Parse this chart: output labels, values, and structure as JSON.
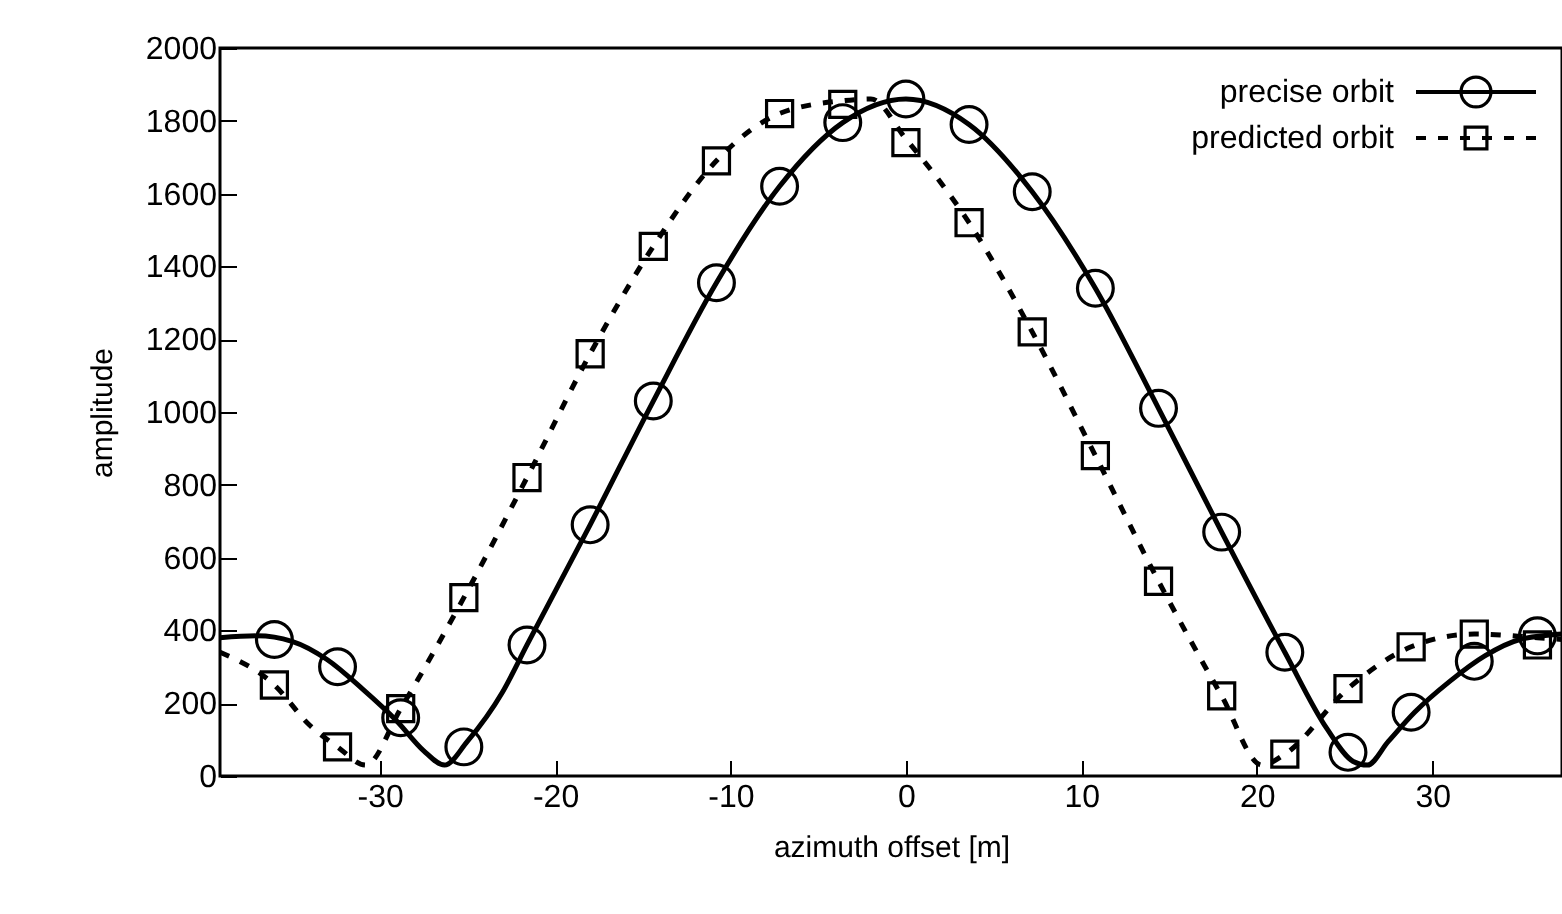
{
  "chart_data": {
    "type": "line",
    "xlabel": "azimuth offset [m]",
    "ylabel": "amplitude",
    "xlim": [
      -39.1,
      37.4
    ],
    "ylim": [
      0,
      2000
    ],
    "xticks": [
      -30,
      -20,
      -10,
      0,
      10,
      20,
      30
    ],
    "yticks": [
      0,
      200,
      400,
      600,
      800,
      1000,
      1200,
      1400,
      1600,
      1800,
      2000
    ],
    "grid": false,
    "legend": "top right",
    "series": [
      {
        "name": "precise orbit",
        "color": "#000000",
        "line_style": "solid",
        "x": [
          -39.1,
          -37,
          -35,
          -33,
          -31,
          -29,
          -27.5,
          -26.3,
          -25,
          -23,
          -21.6,
          -18,
          -14.4,
          -10.8,
          -7.2,
          -3.6,
          0,
          3.6,
          7.2,
          10.8,
          14.4,
          18,
          21.6,
          24,
          25.5,
          26.3,
          27.5,
          29,
          31,
          33,
          35,
          37.4
        ],
        "values": [
          380,
          385,
          370,
          320,
          240,
          150,
          70,
          30,
          95,
          230,
          360,
          690,
          1030,
          1355,
          1620,
          1795,
          1860,
          1790,
          1605,
          1340,
          1010,
          670,
          340,
          130,
          40,
          30,
          95,
          175,
          260,
          330,
          375,
          390
        ]
      },
      {
        "type": "scatter",
        "color": "#000000",
        "marker": "circle",
        "x": [
          -36,
          -32.4,
          -28.8,
          -25.2,
          -21.6,
          -18,
          -14.4,
          -10.8,
          -7.2,
          -3.6,
          0,
          3.6,
          7.2,
          10.8,
          14.4,
          18,
          21.6,
          25.2,
          28.8,
          32.4,
          36
        ],
        "values": [
          375,
          300,
          160,
          80,
          360,
          690,
          1030,
          1355,
          1620,
          1795,
          1860,
          1790,
          1605,
          1340,
          1010,
          670,
          340,
          65,
          175,
          315,
          385
        ]
      },
      {
        "name": "predicted orbit",
        "color": "#000000",
        "line_style": "dashed",
        "x": [
          -39.1,
          -36,
          -34,
          -32.4,
          -30.8,
          -28.8,
          -25.2,
          -21.6,
          -18,
          -14.4,
          -10.8,
          -7.2,
          -3.6,
          -2,
          0,
          3.6,
          7.2,
          10.8,
          14.4,
          18,
          20.3,
          21.6,
          25.2,
          28.8,
          32.4,
          36,
          37.4
        ],
        "values": [
          340,
          250,
          140,
          80,
          30,
          185,
          490,
          820,
          1160,
          1455,
          1690,
          1820,
          1855,
          1860,
          1750,
          1520,
          1220,
          880,
          535,
          220,
          30,
          60,
          240,
          355,
          390,
          380,
          375
        ]
      },
      {
        "type": "scatter",
        "color": "#000000",
        "marker": "square",
        "x": [
          -36,
          -32.4,
          -28.8,
          -25.2,
          -21.6,
          -18,
          -14.4,
          -10.8,
          -7.2,
          -3.6,
          0,
          3.6,
          7.2,
          10.8,
          14.4,
          18,
          21.6,
          25.2,
          28.8,
          32.4,
          36
        ],
        "values": [
          250,
          80,
          185,
          490,
          820,
          1160,
          1455,
          1690,
          1820,
          1845,
          1740,
          1520,
          1220,
          880,
          535,
          220,
          60,
          240,
          355,
          390,
          360
        ]
      }
    ]
  }
}
